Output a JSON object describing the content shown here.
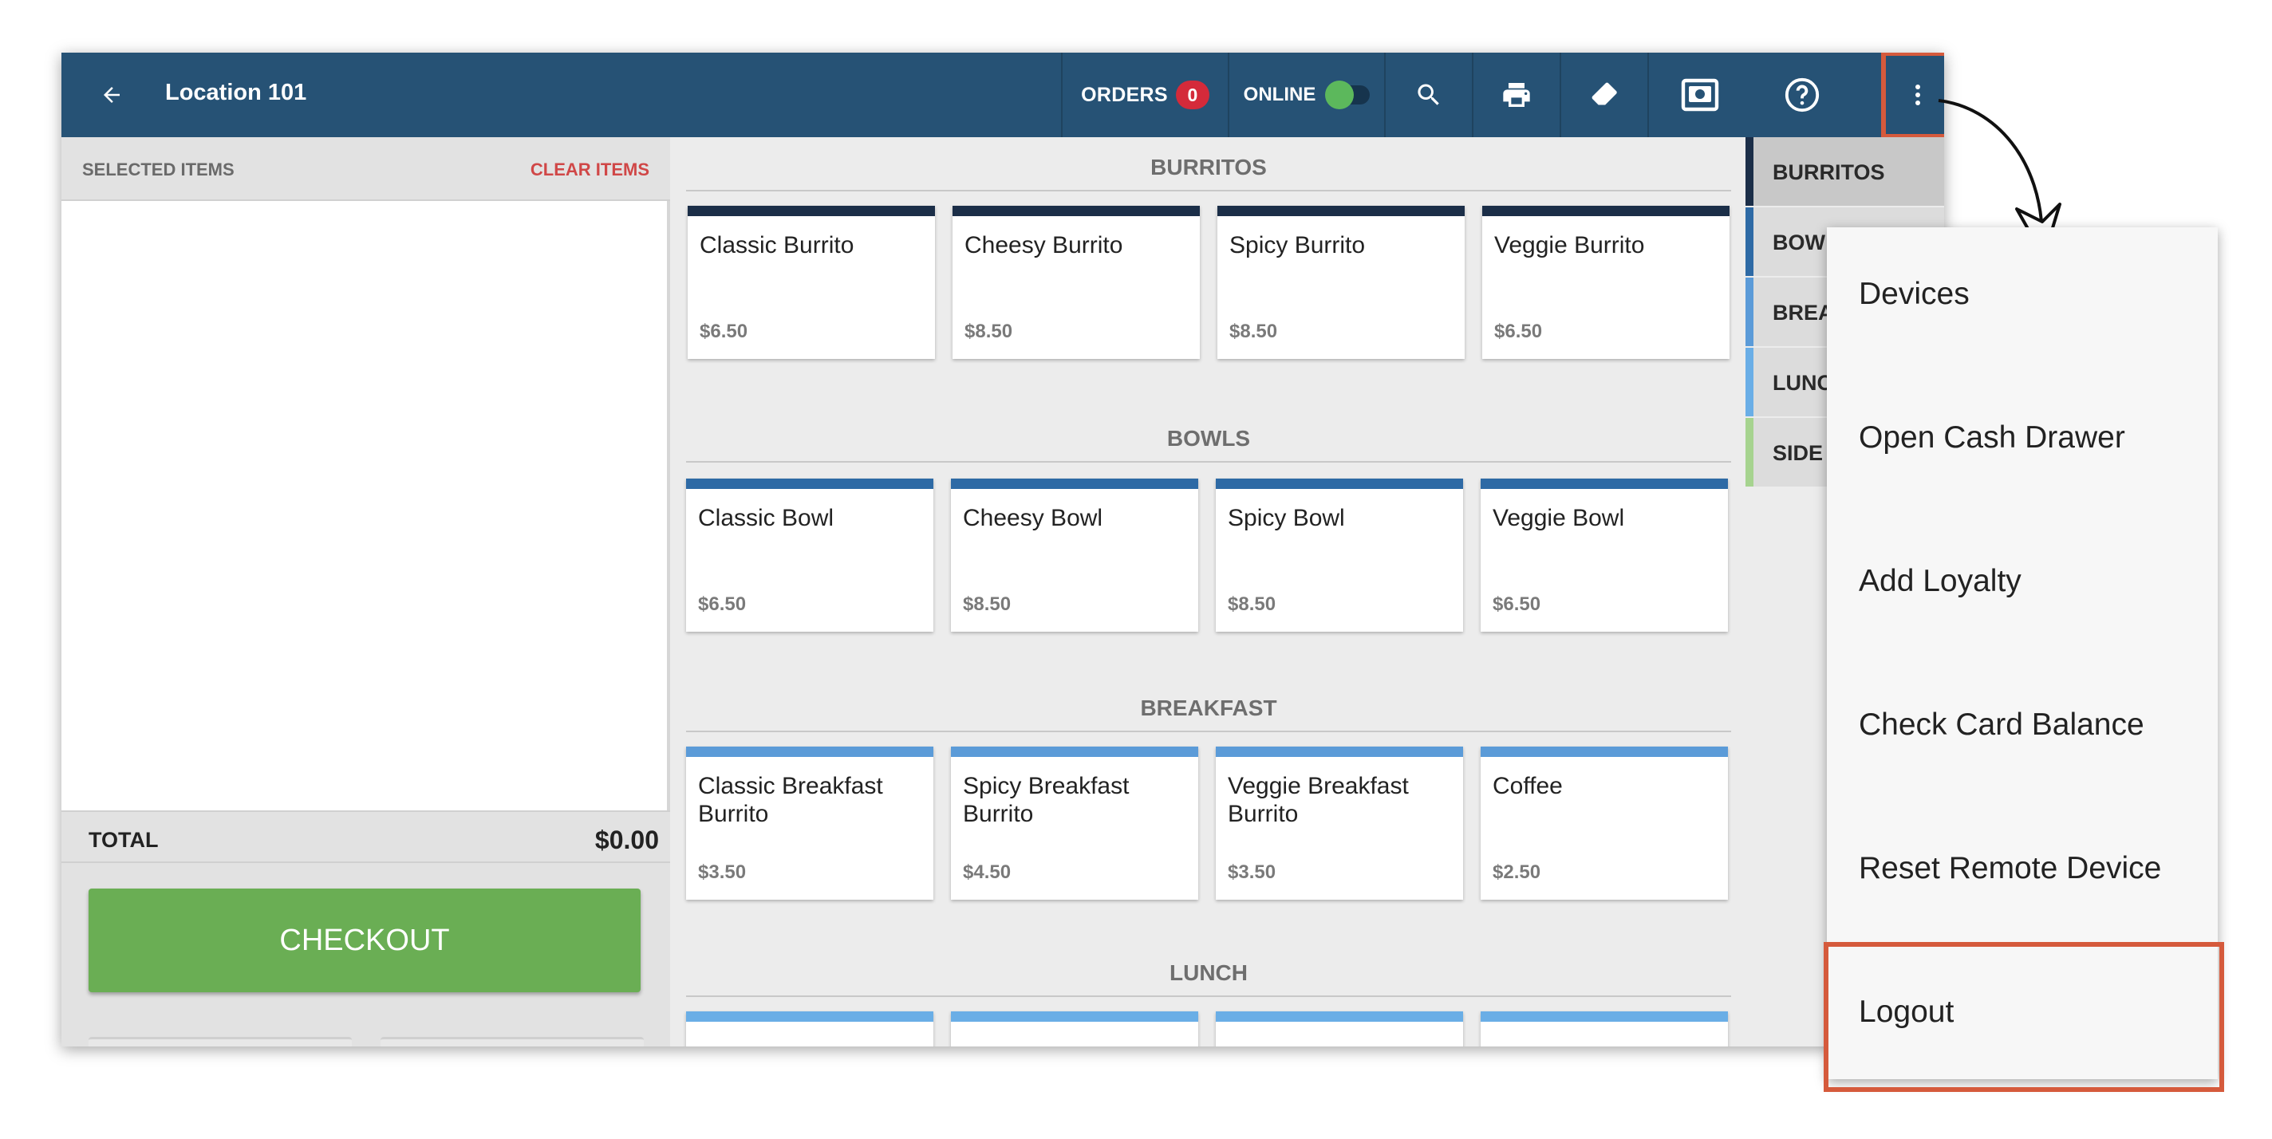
{
  "header": {
    "title": "Location 101",
    "orders_label": "ORDERS",
    "orders_count": "0",
    "online_label": "ONLINE",
    "online_enabled": true
  },
  "left_panel": {
    "selected_label": "SELECTED ITEMS",
    "clear_label": "CLEAR ITEMS",
    "total_label": "TOTAL",
    "total_value": "$0.00",
    "checkout_label": "CHECKOUT"
  },
  "menu": {
    "sections": [
      {
        "title": "BURRITOS",
        "items": [
          {
            "name": "Classic Burrito",
            "price": "$6.50"
          },
          {
            "name": "Cheesy Burrito",
            "price": "$8.50"
          },
          {
            "name": "Spicy Burrito",
            "price": "$8.50"
          },
          {
            "name": "Veggie Burrito",
            "price": "$6.50"
          }
        ]
      },
      {
        "title": "BOWLS",
        "items": [
          {
            "name": "Classic Bowl",
            "price": "$6.50"
          },
          {
            "name": "Cheesy Bowl",
            "price": "$8.50"
          },
          {
            "name": "Spicy Bowl",
            "price": "$8.50"
          },
          {
            "name": "Veggie Bowl",
            "price": "$6.50"
          }
        ]
      },
      {
        "title": "BREAKFAST",
        "items": [
          {
            "name": "Classic Breakfast Burrito",
            "price": "$3.50"
          },
          {
            "name": "Spicy Breakfast Burrito",
            "price": "$4.50"
          },
          {
            "name": "Veggie Breakfast Burrito",
            "price": "$3.50"
          },
          {
            "name": "Coffee",
            "price": "$2.50"
          }
        ]
      },
      {
        "title": "LUNCH",
        "items": []
      }
    ]
  },
  "categories": [
    {
      "label": "BURRITOS"
    },
    {
      "label": "BOW"
    },
    {
      "label": "BREA"
    },
    {
      "label": "LUNC"
    },
    {
      "label": "SIDE"
    }
  ],
  "dropdown": {
    "items": [
      {
        "label": "Devices"
      },
      {
        "label": "Open Cash Drawer"
      },
      {
        "label": "Add Loyalty"
      },
      {
        "label": "Check Card Balance"
      },
      {
        "label": "Reset Remote Device"
      },
      {
        "label": "Logout"
      }
    ]
  },
  "colors": {
    "header_bg": "#265275",
    "checkout_green": "#6aae54",
    "clear_red": "#d04747",
    "badge_red": "#d42a3a",
    "highlight_orange": "#d55a3c",
    "burritos_bar": "#1b2e48",
    "bowls_bar": "#2e6aa5",
    "breakfast_bar": "#5b9bd8",
    "lunch_bar": "#6aaee6",
    "sides_bar": "#a6d38f"
  }
}
